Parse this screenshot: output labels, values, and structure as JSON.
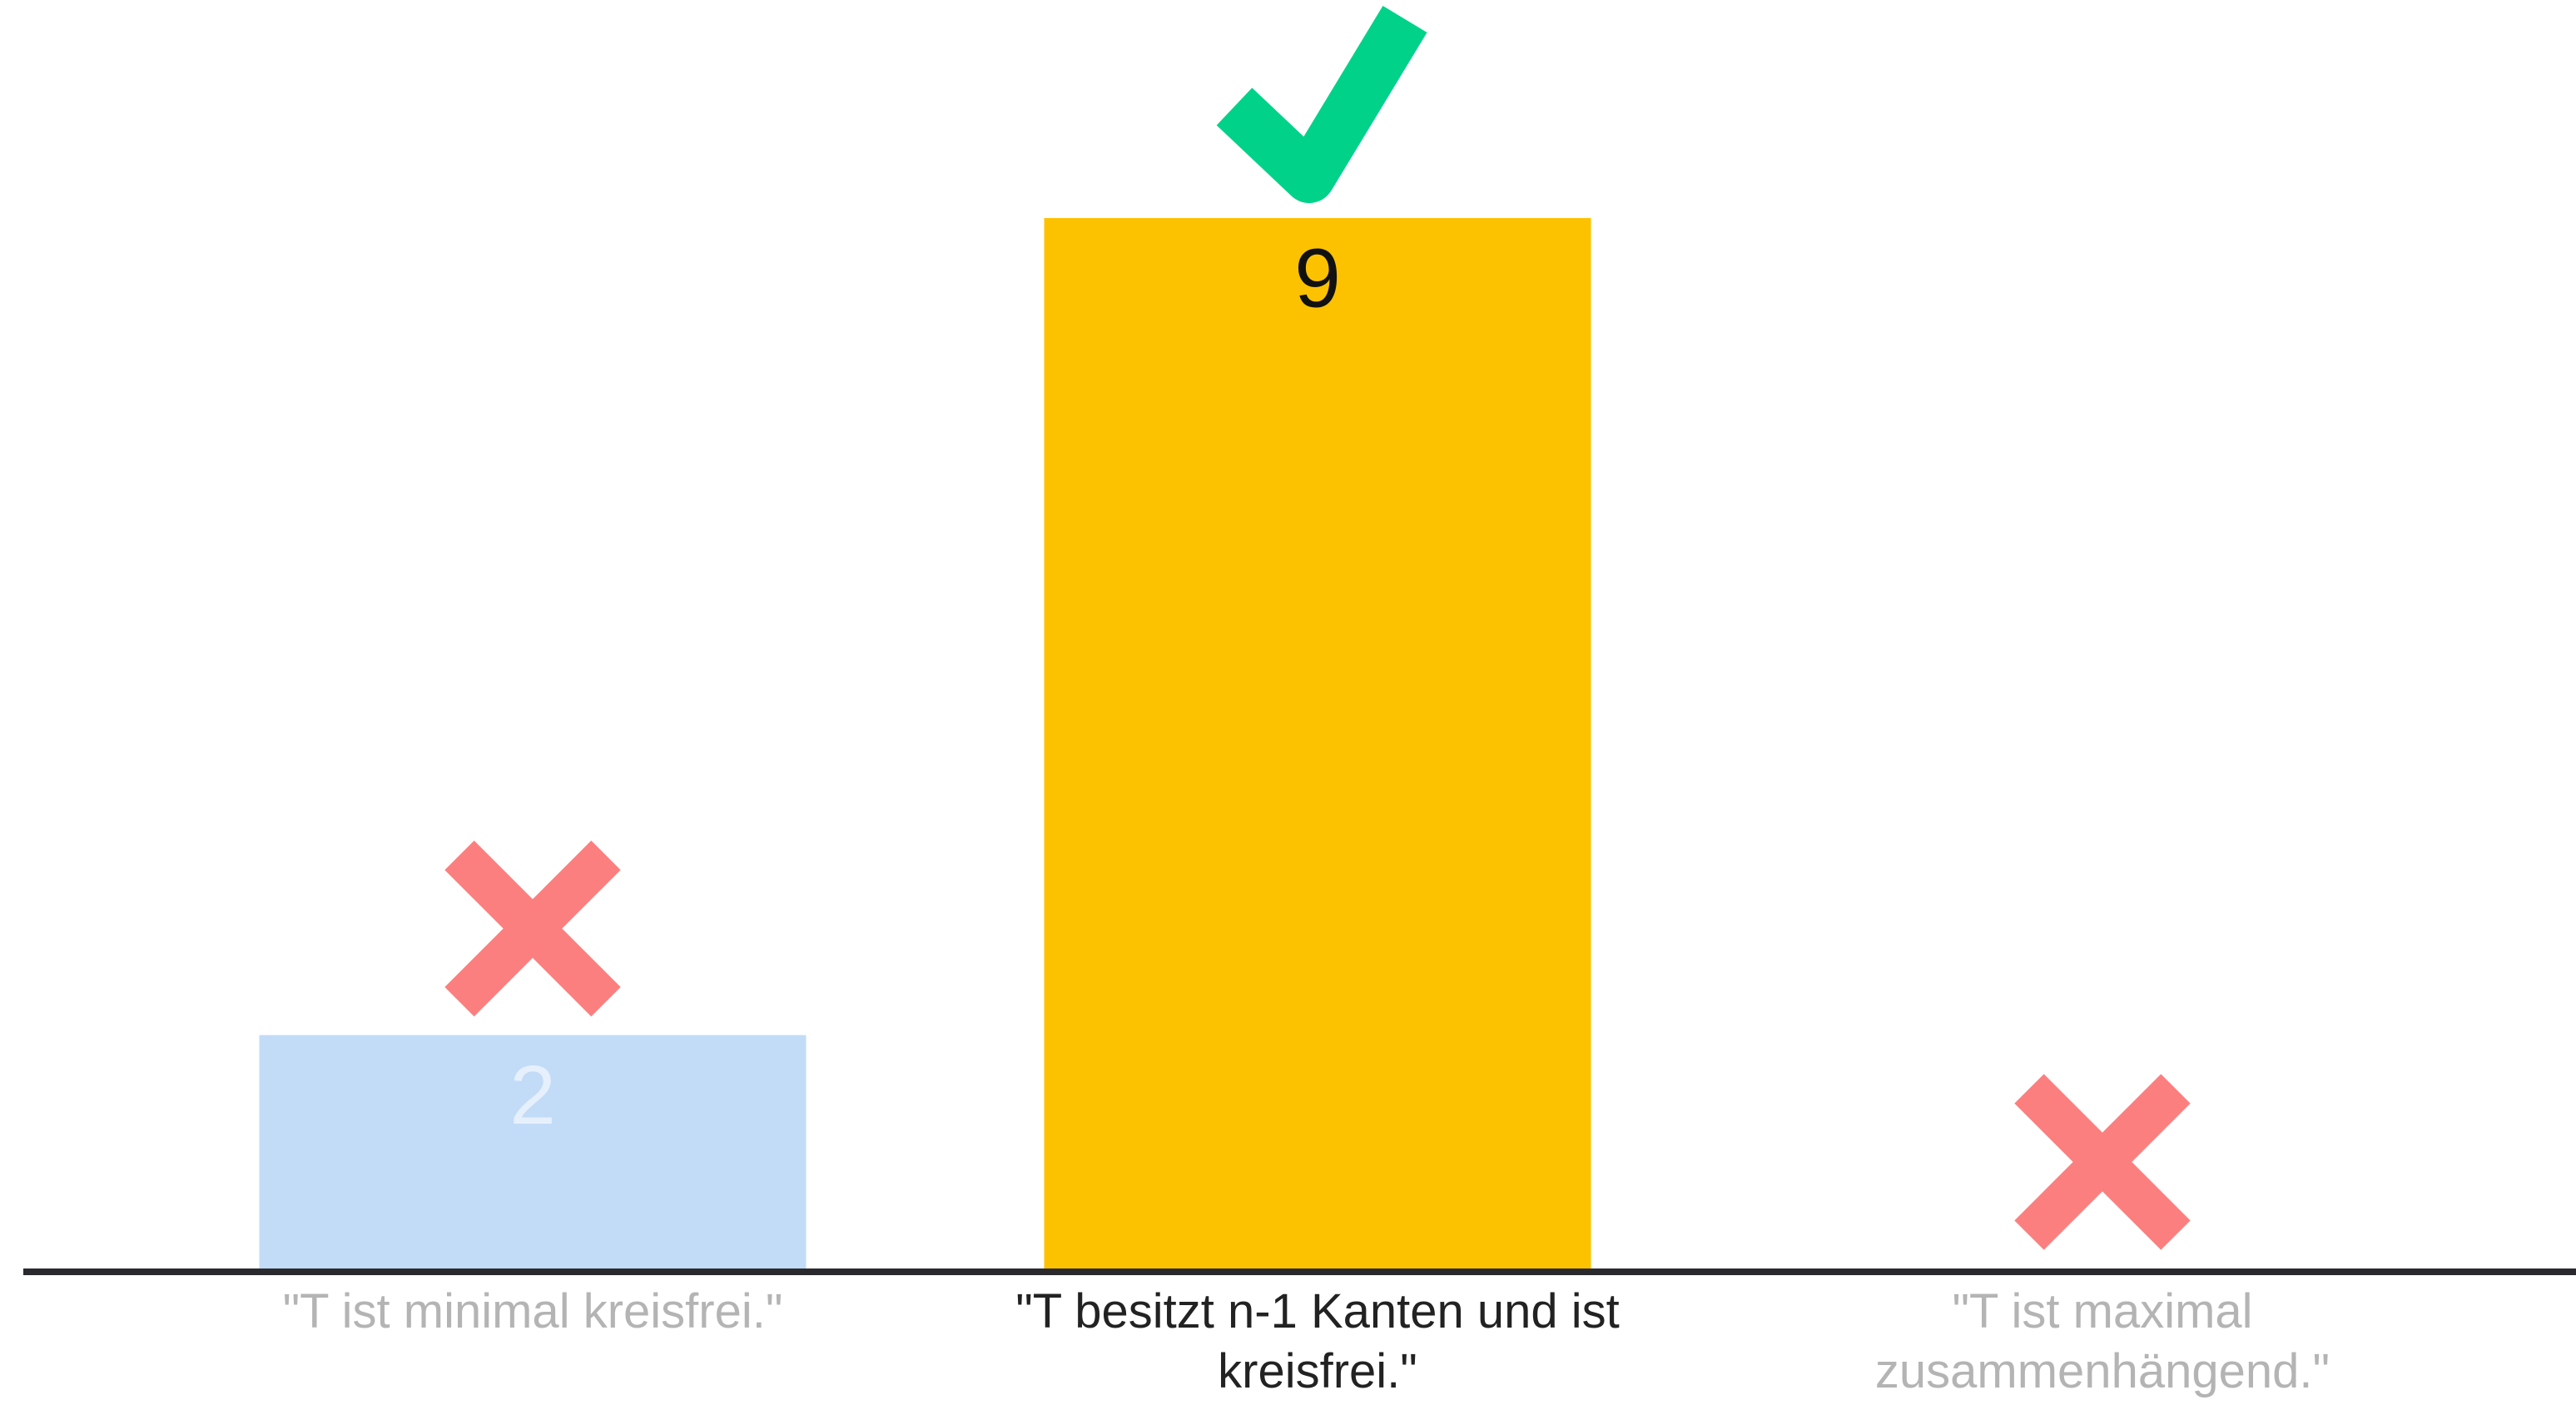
{
  "chart_data": {
    "type": "bar",
    "categories": [
      "\"T ist minimal kreisfrei.\"",
      "\"T besitzt n-1 Kanten und ist kreisfrei.\"",
      "\"T ist maximal zusammenhängend.\""
    ],
    "values": [
      2,
      9,
      0
    ],
    "colors": [
      "#c2dbf7",
      "#fcc200",
      "#c2dbf7"
    ],
    "correct": [
      false,
      true,
      false
    ],
    "correct_color": "#00d28a",
    "wrong_color": "#fc7f7f"
  }
}
